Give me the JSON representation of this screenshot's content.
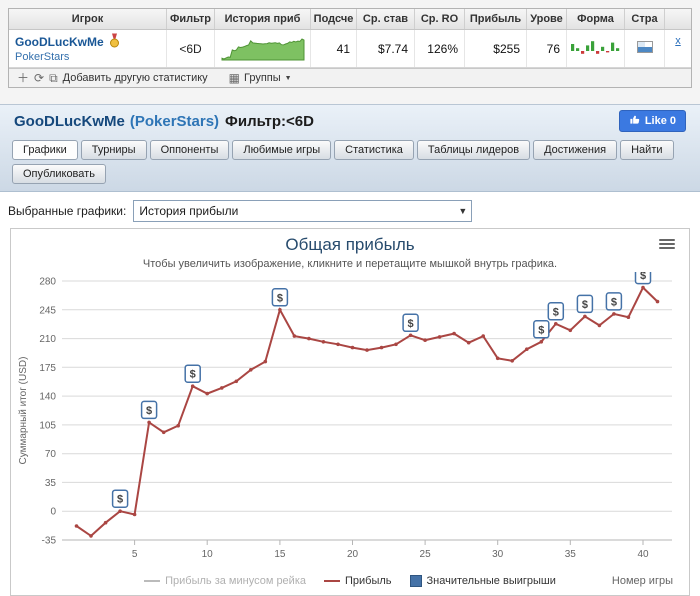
{
  "stats_table": {
    "columns": [
      "Игрок",
      "Фильтр",
      "История приб",
      "Подсче",
      "Ср. став",
      "Ср. RO",
      "Прибыль",
      "Урове",
      "Форма",
      "Стра"
    ],
    "row": {
      "player": "GooDLucKwMe",
      "site": "PokerStars",
      "filter": "<6D",
      "games_count": "41",
      "avg_stake": "$7.74",
      "avg_roi": "126%",
      "profit": "$255",
      "level": "76",
      "form": [
        5,
        2,
        -2,
        4,
        7,
        -2,
        3,
        -1,
        6,
        2
      ],
      "remove_label": "x"
    },
    "toolbar": {
      "add_label": "Добавить другую статистику",
      "groups_label": "Группы"
    }
  },
  "icons": {
    "plus": "＋",
    "refresh": "⟳",
    "copy": "⧉",
    "grid": "▦",
    "caret_down": "▼"
  },
  "profile": {
    "player": "GooDLucKwMe",
    "site": "(PokerStars)",
    "filter": "Фильтр:<6D",
    "like_label": "Like 0"
  },
  "tabs": {
    "row1": [
      "Графики",
      "Турниры",
      "Оппоненты",
      "Любимые игры",
      "Статистика",
      "Таблицы лидеров",
      "Достижения",
      "Найти"
    ],
    "row2": [
      "Опубликовать"
    ],
    "active": "Графики"
  },
  "chart_controls": {
    "label": "Выбранные графики:",
    "selected": "История прибыли"
  },
  "chart_data": {
    "type": "line",
    "title": "Общая прибыль",
    "subtitle": "Чтобы увеличить изображение, кликните и перетащите мышкой внутрь графика.",
    "xlabel": "Номер игры",
    "ylabel": "Суммарный итог (USD)",
    "xlim": [
      0,
      42
    ],
    "ylim": [
      -35,
      280
    ],
    "ytick_step": 35,
    "xticks": [
      5,
      10,
      15,
      20,
      25,
      30,
      35,
      40
    ],
    "grid": "horizontal",
    "legend_position": "bottom",
    "x": [
      1,
      2,
      3,
      4,
      5,
      6,
      7,
      8,
      9,
      10,
      11,
      12,
      13,
      14,
      15,
      16,
      17,
      18,
      19,
      20,
      21,
      22,
      23,
      24,
      25,
      26,
      27,
      28,
      29,
      30,
      31,
      32,
      33,
      34,
      35,
      36,
      37,
      38,
      39,
      40,
      41
    ],
    "series": [
      {
        "name": "Прибыль за минусом рейка",
        "color": "#bbbbbb",
        "hidden": true,
        "values": []
      },
      {
        "name": "Прибыль",
        "color": "#AA4643",
        "values": [
          -18,
          -30,
          -14,
          0,
          -4,
          108,
          96,
          104,
          152,
          143,
          150,
          158,
          172,
          182,
          245,
          213,
          210,
          206,
          203,
          199,
          196,
          199,
          203,
          214,
          208,
          212,
          216,
          205,
          213,
          186,
          183,
          197,
          206,
          228,
          220,
          237,
          226,
          240,
          236,
          272,
          255
        ]
      },
      {
        "name": "Значительные выигрыши",
        "color": "#4572A7",
        "marker": "$",
        "games": [
          4,
          6,
          9,
          15,
          24,
          33,
          34,
          36,
          38,
          40
        ]
      }
    ]
  }
}
